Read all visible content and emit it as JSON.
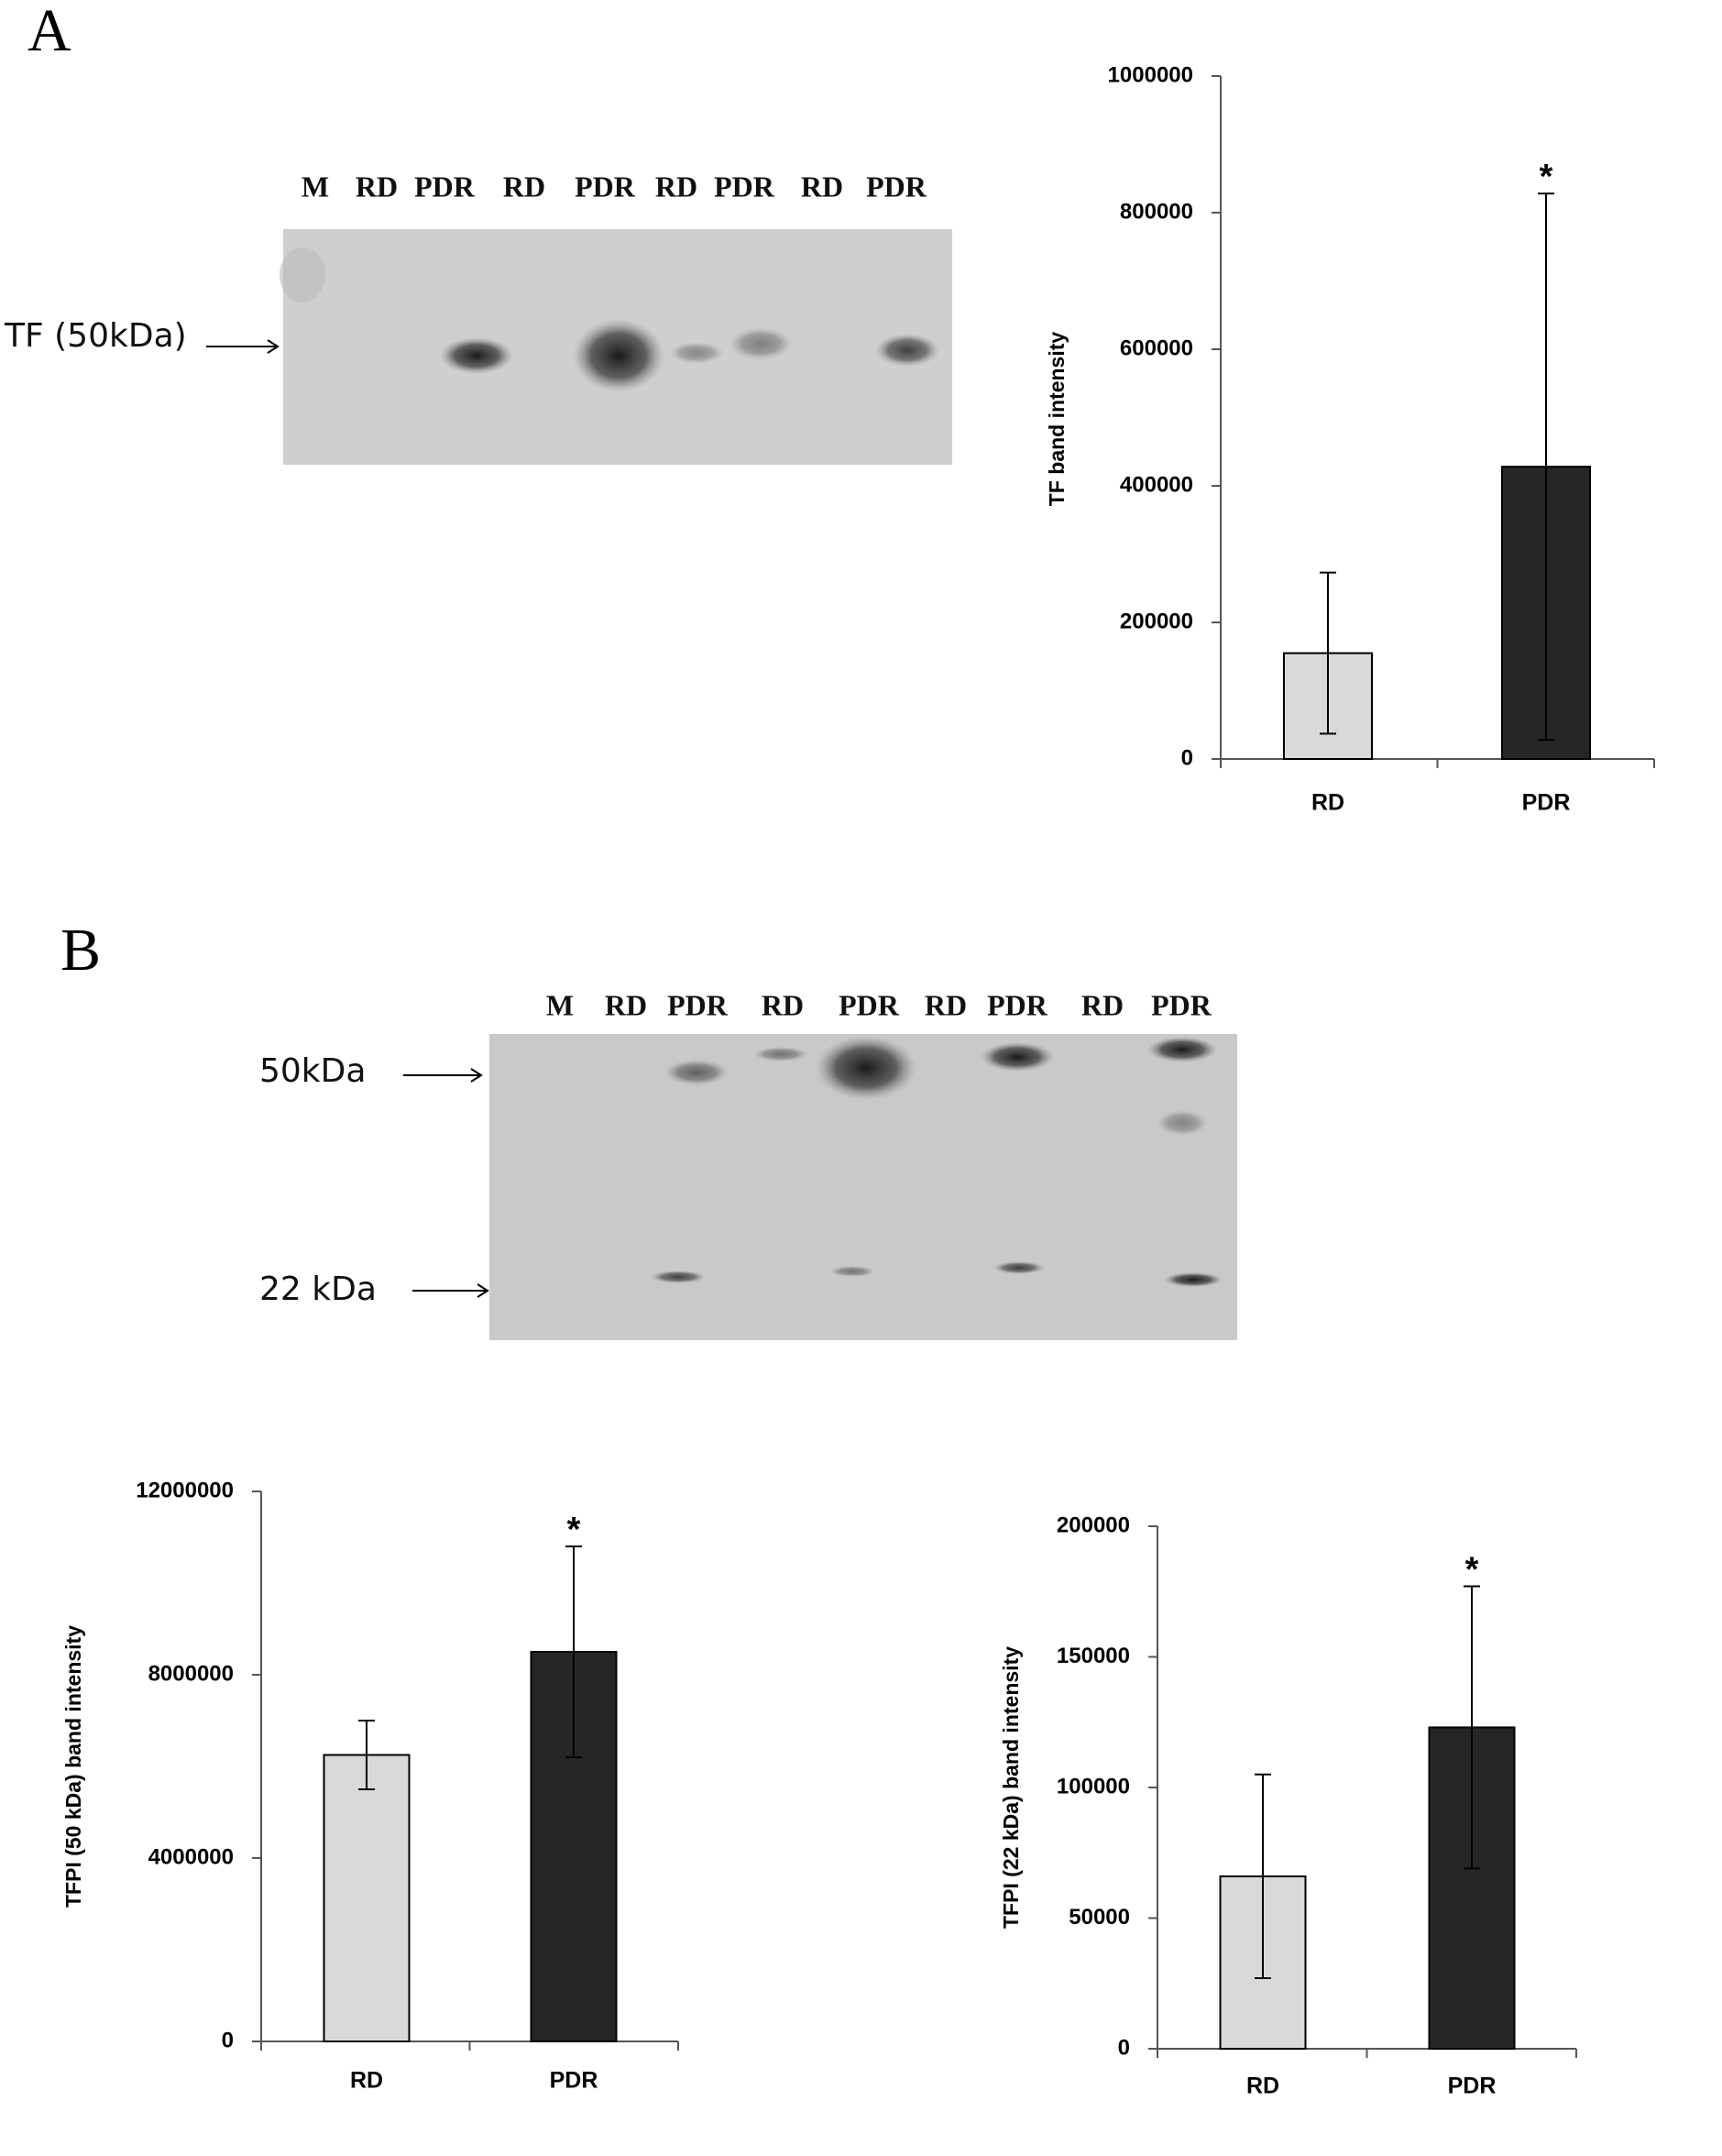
{
  "panel_labels": [
    "A",
    "B"
  ],
  "blot_a": {
    "lanes": [
      "M",
      "RD",
      "PDR",
      "RD",
      "PDR",
      "RD",
      "PDR",
      "RD",
      "PDR"
    ],
    "markers": [
      "TF (50kDa)"
    ]
  },
  "blot_b": {
    "lanes": [
      "M",
      "RD",
      "PDR",
      "RD",
      "PDR",
      "RD",
      "PDR",
      "RD",
      "PDR"
    ],
    "markers": [
      "50kDa",
      "22 kDa"
    ]
  },
  "chart_data": [
    {
      "type": "bar",
      "y_label": "TF band intensity",
      "categories": [
        "RD",
        "PDR"
      ],
      "values": [
        155000,
        428000
      ],
      "errors": [
        118000,
        400000
      ],
      "colors": [
        "#d9d9d9",
        "#262626"
      ],
      "annotation": "*",
      "ylim": [
        0,
        1000000
      ],
      "yticks": [
        0,
        200000,
        400000,
        600000,
        800000,
        1000000
      ]
    },
    {
      "type": "bar",
      "y_label": "TFPI (50 kDa) band intensity",
      "categories": [
        "RD",
        "PDR"
      ],
      "values": [
        6250000,
        8500000
      ],
      "errors": [
        750000,
        2300000
      ],
      "colors": [
        "#d9d9d9",
        "#262626"
      ],
      "annotation": "*",
      "ylim": [
        0,
        12000000
      ],
      "yticks": [
        0,
        4000000,
        8000000,
        12000000
      ]
    },
    {
      "type": "bar",
      "y_label": "TFPI (22 kDa) band intensity",
      "categories": [
        "RD",
        "PDR"
      ],
      "values": [
        66000,
        123000
      ],
      "errors": [
        39000,
        54000
      ],
      "colors": [
        "#d9d9d9",
        "#262626"
      ],
      "annotation": "*",
      "ylim": [
        0,
        200000
      ],
      "yticks": [
        0,
        50000,
        100000,
        150000,
        200000
      ]
    }
  ]
}
